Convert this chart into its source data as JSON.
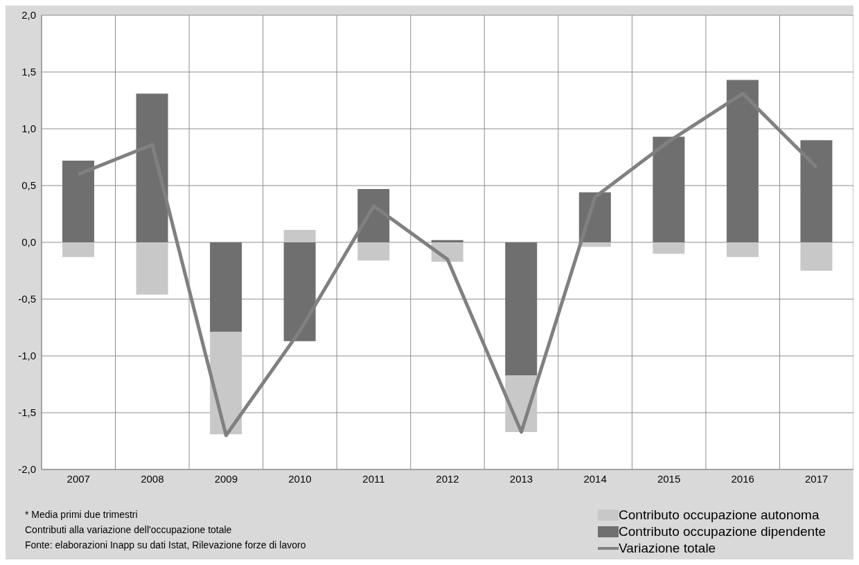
{
  "chart_data": {
    "type": "bar",
    "stacked": true,
    "categories": [
      "2007",
      "2008",
      "2009",
      "2010",
      "2011",
      "2012",
      "2013",
      "2014",
      "2015",
      "2016",
      "2017"
    ],
    "series": [
      {
        "name": "Contributo occupazione dipendente",
        "color": "#6f6f6f",
        "values": [
          0.72,
          1.31,
          -0.79,
          -0.87,
          0.47,
          0.02,
          -1.17,
          0.44,
          0.93,
          1.43,
          0.9
        ]
      },
      {
        "name": "Contributo occupazione autonoma",
        "color": "#c8c8c8",
        "values": [
          -0.13,
          -0.46,
          -0.9,
          0.11,
          -0.16,
          -0.17,
          -0.5,
          -0.04,
          -0.1,
          -0.13,
          -0.25
        ]
      },
      {
        "name": "Variazione totale",
        "type": "line",
        "color": "#808080",
        "marker": "none",
        "values": [
          0.6,
          0.86,
          -1.7,
          -0.78,
          0.32,
          -0.15,
          -1.67,
          0.4,
          0.89,
          1.31,
          0.66
        ]
      }
    ],
    "ylim": [
      -2,
      2
    ],
    "yticks": [
      {
        "value": -2,
        "label": "-2,0"
      },
      {
        "value": -1.5,
        "label": "-1,5"
      },
      {
        "value": -1,
        "label": "-1,0"
      },
      {
        "value": -0.5,
        "label": "-0,5"
      },
      {
        "value": 0,
        "label": "0,0"
      },
      {
        "value": 0.5,
        "label": "0,5"
      },
      {
        "value": 1,
        "label": "1,0"
      },
      {
        "value": 1.5,
        "label": "1,5"
      },
      {
        "value": 2,
        "label": "2,0"
      }
    ],
    "grid": true,
    "legend": "bottom right",
    "annotations": [
      "* Media primi due trimestri",
      "Contributi alla variazione dell'occupazione totale",
      "Fonte: elaborazioni Inapp su dati Istat, Rilevazione forze di lavoro"
    ]
  }
}
